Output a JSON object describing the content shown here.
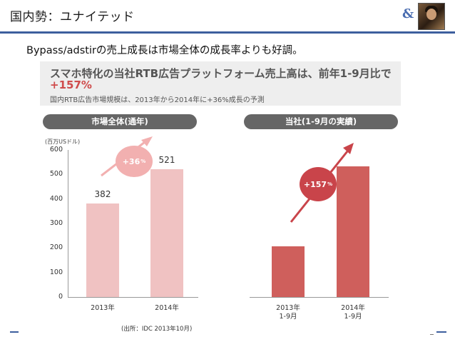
{
  "header": {
    "title": "国内勢：ユナイテッド"
  },
  "subtitle": "Bypass/adstirの売上成長は市場全体の成長率よりも好調。",
  "panel": {
    "headline": "スマホ特化の当社RTB広告プラットフォーム売上高は、前年1-9月比で",
    "highlight": "+157%",
    "note": "国内RTB広告市場規模は、2013年から2014年に+36%成長の予測"
  },
  "left_chart_title": "市場全体(通年)",
  "right_chart_title": "当社(1-9月の実績)",
  "unit_label": "(百万USドル)",
  "source": "(出所：IDC 2013年10月)",
  "colors": {
    "accent": "#3d5f9e",
    "bar_light": "#f0c2c2",
    "bar_dark": "#cf5f5c",
    "badge_light": "#f2b0b0",
    "badge_dark": "#c9444a"
  },
  "chart_data": [
    {
      "type": "bar",
      "title": "市場全体(通年)",
      "categories": [
        "2013年",
        "2014年"
      ],
      "values": [
        382,
        521
      ],
      "ylabel": "(百万USドル)",
      "ylim": [
        0,
        600
      ],
      "yticks": [
        "0",
        "100",
        "200",
        "300",
        "400",
        "500",
        "600"
      ],
      "data_labels": [
        "382",
        "521"
      ],
      "annotation": {
        "text": "+36",
        "unit": "%"
      }
    },
    {
      "type": "bar",
      "title": "当社(1-9月の実績)",
      "categories": [
        "2013年\n1-9月",
        "2014年\n1-9月"
      ],
      "values": [
        208,
        533
      ],
      "ylim": [
        0,
        600
      ],
      "annotation": {
        "text": "+157",
        "unit": "%"
      }
    }
  ]
}
